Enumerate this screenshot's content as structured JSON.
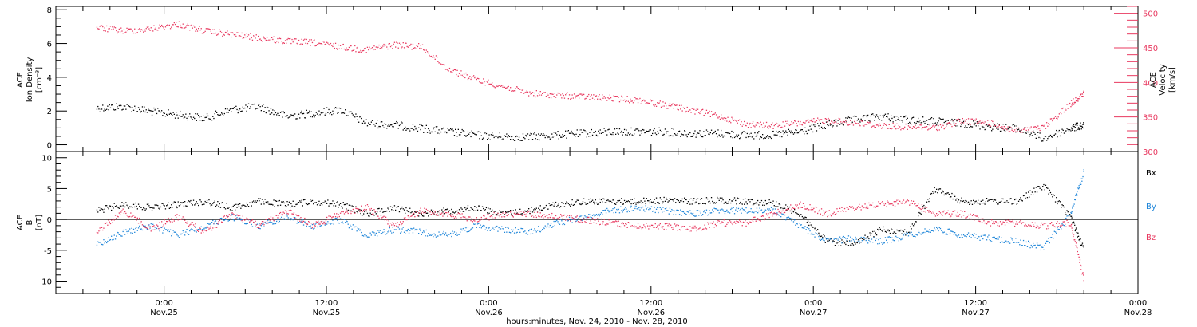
{
  "chart_data": [
    {
      "type": "scatter",
      "panel": "top",
      "ylabel_left": [
        "ACE",
        "Ion Density",
        "[cm⁻³]"
      ],
      "ylabel_right": [
        "ACE",
        "Velocity",
        "[km/s]"
      ],
      "ylim_left": [
        -0.4,
        8.2
      ],
      "yticks_left": [
        "0",
        "2",
        "4",
        "6",
        "8"
      ],
      "ylim_right": [
        300,
        510
      ],
      "yticks_right": [
        "300",
        "350",
        "400",
        "450",
        "500"
      ],
      "colors": {
        "density": "#000000",
        "velocity": "#e8385f"
      },
      "series": [
        {
          "name": "",
          "axis": "left",
          "color": "#000000",
          "x_hours": [
            -5,
            -3,
            -1,
            1,
            3,
            5,
            7,
            9,
            11,
            13,
            15,
            17,
            19,
            21,
            23,
            25,
            27,
            29,
            31,
            33,
            35,
            37,
            39,
            41,
            43,
            45,
            47,
            49,
            51,
            53,
            55,
            57,
            59,
            61,
            63,
            65,
            67,
            68
          ],
          "values": [
            2.2,
            2.3,
            2.0,
            1.8,
            1.6,
            2.1,
            2.3,
            1.7,
            1.9,
            2.1,
            1.3,
            1.2,
            1.0,
            0.8,
            0.6,
            0.5,
            0.5,
            0.6,
            0.7,
            0.8,
            0.8,
            0.8,
            0.7,
            0.7,
            0.6,
            0.6,
            0.8,
            1.2,
            1.5,
            1.7,
            1.5,
            1.4,
            1.3,
            1.1,
            1.0,
            0.4,
            1.0,
            1.2
          ]
        },
        {
          "name": "",
          "axis": "right",
          "color": "#e8385f",
          "x_hours": [
            -5,
            -3,
            -1,
            1,
            3,
            5,
            7,
            9,
            11,
            13,
            15,
            17,
            19,
            21,
            23,
            25,
            27,
            29,
            31,
            33,
            35,
            37,
            39,
            41,
            43,
            45,
            47,
            49,
            51,
            53,
            55,
            57,
            59,
            61,
            63,
            65,
            67,
            68
          ],
          "values": [
            480,
            475,
            478,
            485,
            475,
            470,
            465,
            460,
            458,
            452,
            448,
            455,
            452,
            420,
            405,
            395,
            385,
            382,
            380,
            378,
            375,
            368,
            360,
            352,
            340,
            338,
            342,
            346,
            342,
            338,
            336,
            335,
            345,
            342,
            330,
            335,
            370,
            385
          ]
        }
      ]
    },
    {
      "type": "scatter",
      "panel": "bottom",
      "ylabel_left": [
        "ACE",
        "B",
        "[nT]"
      ],
      "ylim": [
        -12,
        11
      ],
      "yticks": [
        "-10",
        "-5",
        "0",
        "5",
        "10"
      ],
      "zero_line": true,
      "legend_placement": "right",
      "series": [
        {
          "name": "Bx",
          "color": "#000000",
          "x_hours": [
            -5,
            -3,
            -1,
            1,
            3,
            5,
            7,
            9,
            11,
            13,
            15,
            17,
            19,
            21,
            23,
            25,
            27,
            29,
            31,
            33,
            35,
            37,
            39,
            41,
            43,
            45,
            47,
            49,
            51,
            53,
            55,
            57,
            59,
            61,
            63,
            65,
            67,
            68
          ],
          "values": [
            1.5,
            2.5,
            2.0,
            2.5,
            3.0,
            2.0,
            3.0,
            2.5,
            3.0,
            2.5,
            1.0,
            2.0,
            1.0,
            1.5,
            2.0,
            1.0,
            1.5,
            2.5,
            3.0,
            3.0,
            3.0,
            3.2,
            3.0,
            3.2,
            3.0,
            2.8,
            1.0,
            -3.5,
            -4.0,
            -1.5,
            -2.0,
            5.0,
            3.0,
            3.0,
            3.0,
            5.5,
            0.5,
            -5.0
          ]
        },
        {
          "name": "By",
          "color": "#1f86d9",
          "x_hours": [
            -5,
            -3,
            -1,
            1,
            3,
            5,
            7,
            9,
            11,
            13,
            15,
            17,
            19,
            21,
            23,
            25,
            27,
            29,
            31,
            33,
            35,
            37,
            39,
            41,
            43,
            45,
            47,
            49,
            51,
            53,
            55,
            57,
            59,
            61,
            63,
            65,
            67,
            68
          ],
          "values": [
            -4.0,
            -2.0,
            -1.0,
            -2.5,
            -1.0,
            0.5,
            -1.0,
            0.5,
            -1.0,
            0.0,
            -2.5,
            -1.5,
            -2.0,
            -2.5,
            -1.0,
            -1.5,
            -2.0,
            -0.5,
            0.5,
            1.5,
            2.0,
            1.5,
            1.0,
            1.5,
            1.5,
            1.5,
            -1.0,
            -3.5,
            -3.0,
            -3.5,
            -2.5,
            -1.5,
            -2.5,
            -3.0,
            -3.5,
            -4.5,
            1.0,
            8.0
          ]
        },
        {
          "name": "Bz",
          "color": "#e8385f",
          "x_hours": [
            -5,
            -3,
            -1,
            1,
            3,
            5,
            7,
            9,
            11,
            13,
            15,
            17,
            19,
            21,
            23,
            25,
            27,
            29,
            31,
            33,
            35,
            37,
            39,
            41,
            43,
            45,
            47,
            49,
            51,
            53,
            55,
            57,
            59,
            61,
            63,
            65,
            67,
            68
          ],
          "values": [
            -2.0,
            1.5,
            -1.5,
            0.5,
            -2.0,
            1.0,
            -1.0,
            1.5,
            -1.0,
            1.0,
            2.0,
            -1.0,
            1.5,
            1.0,
            0.0,
            1.0,
            1.0,
            0.5,
            0.0,
            -0.5,
            -1.0,
            -1.0,
            -1.5,
            -0.5,
            -0.5,
            1.0,
            2.5,
            1.0,
            2.0,
            2.5,
            3.0,
            1.0,
            1.0,
            -0.5,
            -0.5,
            -1.0,
            -0.5,
            -10.0
          ]
        }
      ]
    }
  ],
  "legend": {
    "bx": "Bx",
    "by": "By",
    "bz": "Bz"
  },
  "x_axis": {
    "range_hours": [
      -8,
      72
    ],
    "ticks": [
      {
        "hour": 0,
        "time": "0:00",
        "date": "Nov.25"
      },
      {
        "hour": 12,
        "time": "12:00",
        "date": "Nov.25"
      },
      {
        "hour": 24,
        "time": "0:00",
        "date": "Nov.26"
      },
      {
        "hour": 36,
        "time": "12:00",
        "date": "Nov.26"
      },
      {
        "hour": 48,
        "time": "0:00",
        "date": "Nov.27"
      },
      {
        "hour": 60,
        "time": "12:00",
        "date": "Nov.27"
      },
      {
        "hour": 72,
        "time": "0:00",
        "date": "Nov.28"
      }
    ],
    "label": "hours:minutes, Nov. 24, 2010 - Nov. 28, 2010"
  }
}
